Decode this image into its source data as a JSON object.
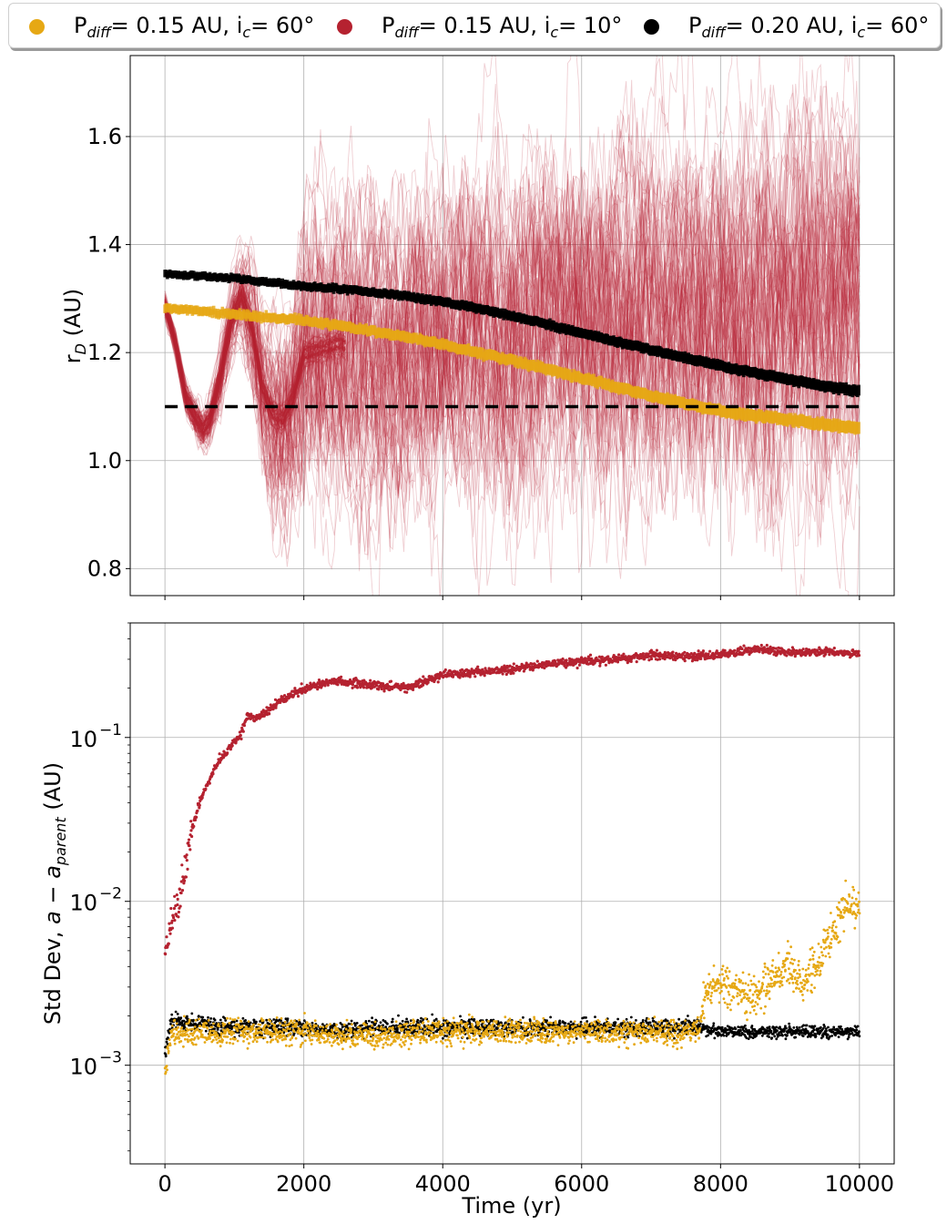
{
  "legend": {
    "items": [
      {
        "label_main": "P",
        "label_sub": "diff",
        "label_tail": "= 0.15 AU, i",
        "label_sub2": "c",
        "label_end": "= 60°",
        "color": "#e6a814"
      },
      {
        "label_main": "P",
        "label_sub": "diff",
        "label_tail": "= 0.15 AU, i",
        "label_sub2": "c",
        "label_end": "= 10°",
        "color": "#b52230"
      },
      {
        "label_main": "P",
        "label_sub": "diff",
        "label_tail": "= 0.20 AU, i",
        "label_sub2": "c",
        "label_end": "= 60°",
        "color": "#000000"
      }
    ]
  },
  "chart_data": [
    {
      "type": "line",
      "ylabel_main": "r",
      "ylabel_sub": "D",
      "ylabel_tail": " (AU)",
      "xlim": [
        -500,
        10500
      ],
      "ylim": [
        0.75,
        1.75
      ],
      "yticks": [
        0.8,
        1.0,
        1.2,
        1.4,
        1.6
      ],
      "ytick_labels": [
        "0.8",
        "1.0",
        "1.2",
        "1.4",
        "1.6"
      ],
      "grid": true,
      "reference_line": {
        "y": 1.1,
        "x": [
          0,
          10000
        ],
        "style": "dashed",
        "color": "#000000"
      },
      "series": [
        {
          "color": "#b52230",
          "style": "many thin translucent trajectories (ensemble)",
          "x": [
            0,
            150,
            300,
            450,
            550,
            650,
            800,
            950,
            1100,
            1250,
            1400,
            1550,
            1700,
            1850,
            2000,
            2500,
            3000,
            4000,
            5000,
            6000,
            7000,
            8000,
            9000,
            10000
          ],
          "y": [
            1.29,
            1.22,
            1.12,
            1.08,
            1.06,
            1.08,
            1.16,
            1.26,
            1.31,
            1.25,
            1.14,
            1.09,
            1.08,
            1.12,
            1.2,
            1.22,
            1.2,
            1.22,
            1.24,
            1.26,
            1.27,
            1.28,
            1.28,
            1.28
          ]
        },
        {
          "color": "#e6a814",
          "x": [
            0,
            500,
            1000,
            1500,
            2000,
            2500,
            3000,
            3500,
            4000,
            4500,
            5000,
            5500,
            6000,
            6500,
            7000,
            7500,
            8000,
            8500,
            9000,
            9500,
            10000
          ],
          "y": [
            1.283,
            1.277,
            1.27,
            1.265,
            1.26,
            1.25,
            1.24,
            1.228,
            1.215,
            1.2,
            1.185,
            1.17,
            1.153,
            1.137,
            1.12,
            1.105,
            1.093,
            1.083,
            1.075,
            1.067,
            1.06
          ]
        },
        {
          "color": "#000000",
          "x": [
            0,
            500,
            1000,
            1500,
            2000,
            2500,
            3000,
            3500,
            4000,
            4500,
            5000,
            5500,
            6000,
            6500,
            7000,
            7500,
            8000,
            8500,
            9000,
            9500,
            10000
          ],
          "y": [
            1.346,
            1.342,
            1.337,
            1.33,
            1.323,
            1.318,
            1.312,
            1.304,
            1.294,
            1.282,
            1.268,
            1.252,
            1.236,
            1.22,
            1.205,
            1.19,
            1.176,
            1.162,
            1.15,
            1.138,
            1.128
          ]
        }
      ]
    },
    {
      "type": "scatter",
      "xlabel": "Time (yr)",
      "ylabel_main": "Std Dev, ",
      "ylabel_math": "a − a",
      "ylabel_sub": "parent",
      "ylabel_tail": " (AU)",
      "xlim": [
        -500,
        10500
      ],
      "xticks": [
        0,
        2000,
        4000,
        6000,
        8000,
        10000
      ],
      "xtick_labels": [
        "0",
        "2000",
        "4000",
        "6000",
        "8000",
        "10000"
      ],
      "yscale": "log",
      "ylim": [
        0.00025,
        0.5
      ],
      "yticks": [
        0.001,
        0.01,
        0.1
      ],
      "ytick_labels": [
        {
          "base": "10",
          "exp": "−3"
        },
        {
          "base": "10",
          "exp": "−2"
        },
        {
          "base": "10",
          "exp": "−1"
        }
      ],
      "grid": true,
      "series": [
        {
          "color": "#b52230",
          "x": [
            0,
            100,
            200,
            300,
            400,
            500,
            600,
            700,
            800,
            900,
            1000,
            1100,
            1200,
            1300,
            1500,
            1700,
            2000,
            2500,
            3000,
            3500,
            4000,
            4500,
            5000,
            5500,
            6000,
            6500,
            7000,
            7500,
            8000,
            8500,
            9000,
            9500,
            10000
          ],
          "y": [
            0.0045,
            0.0078,
            0.0095,
            0.016,
            0.028,
            0.04,
            0.05,
            0.062,
            0.075,
            0.082,
            0.095,
            0.105,
            0.14,
            0.13,
            0.148,
            0.17,
            0.2,
            0.22,
            0.21,
            0.2,
            0.24,
            0.25,
            0.26,
            0.28,
            0.29,
            0.3,
            0.32,
            0.31,
            0.32,
            0.345,
            0.33,
            0.335,
            0.32
          ]
        },
        {
          "color": "#e6a814",
          "x": [
            0,
            100,
            500,
            1000,
            2000,
            3000,
            4000,
            5000,
            6000,
            7000,
            7700,
            7800,
            8000,
            8300,
            8500,
            8800,
            9000,
            9200,
            9400,
            9600,
            9800,
            10000
          ],
          "y": [
            0.0009,
            0.0016,
            0.0016,
            0.0016,
            0.0016,
            0.0015,
            0.0016,
            0.0016,
            0.0016,
            0.0016,
            0.0016,
            0.003,
            0.0032,
            0.0028,
            0.0025,
            0.0035,
            0.004,
            0.003,
            0.0045,
            0.006,
            0.009,
            0.0095
          ]
        },
        {
          "color": "#000000",
          "x": [
            0,
            100,
            500,
            1000,
            2000,
            2500,
            3000,
            4000,
            5000,
            6000,
            7000,
            7700,
            8000,
            9000,
            10000
          ],
          "y": [
            0.0012,
            0.0018,
            0.0018,
            0.0017,
            0.0017,
            0.0016,
            0.0017,
            0.0017,
            0.0017,
            0.0017,
            0.0017,
            0.0017,
            0.0016,
            0.0016,
            0.0016
          ]
        }
      ]
    }
  ]
}
